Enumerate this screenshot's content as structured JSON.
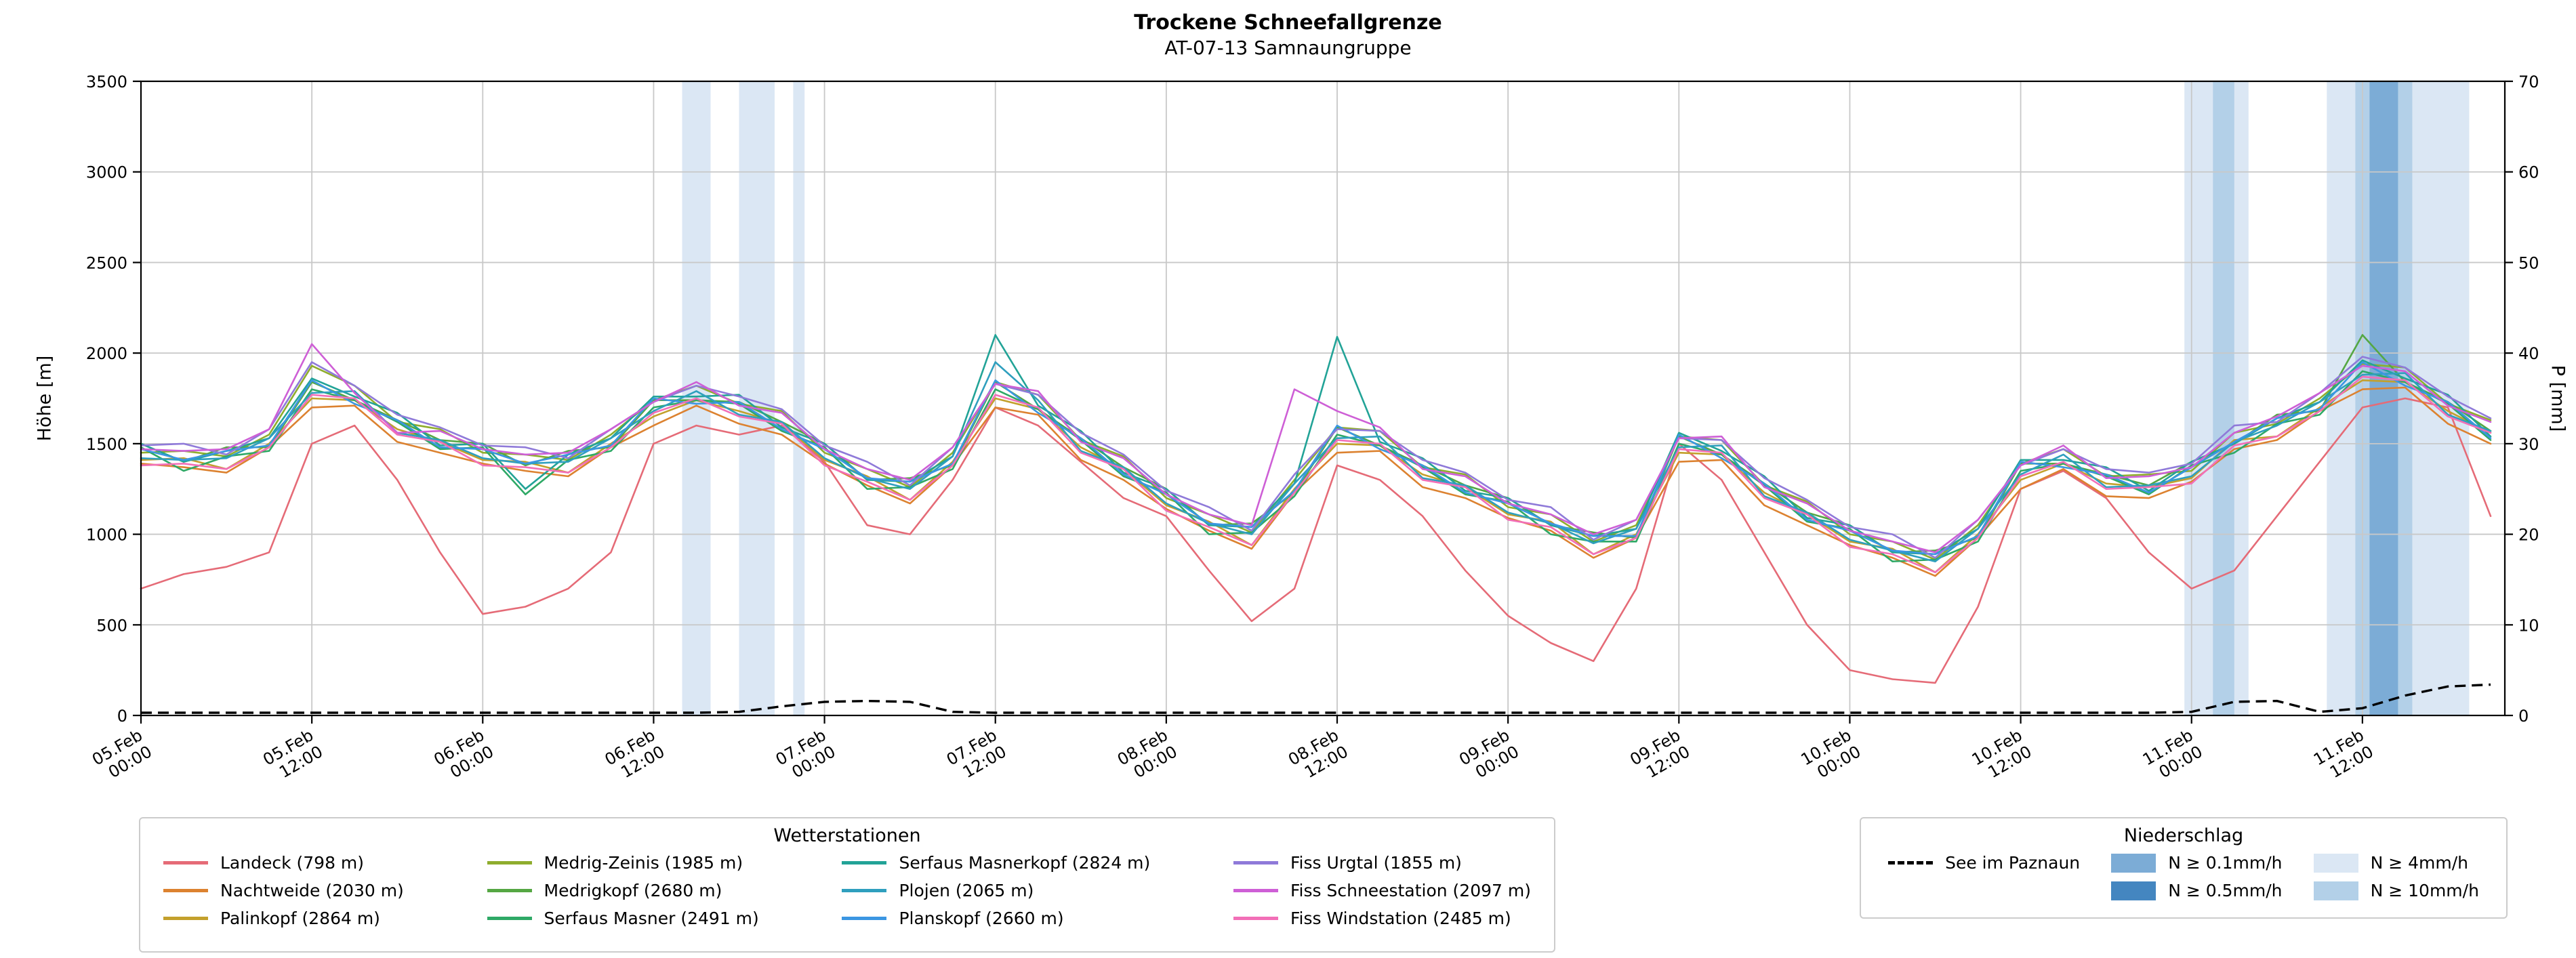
{
  "title": "Trockene Schneefallgrenze",
  "subtitle": "AT-07-13 Samnaungruppe",
  "legend_stations_title": "Wetterstationen",
  "legend_precip_title": "Niederschlag",
  "lake_label": "See im Paznaun",
  "chart_data": {
    "type": "line",
    "title": "Trockene Schneefallgrenze",
    "subtitle": "AT-07-13 Samnaungruppe",
    "x_unit_hours_since": "05.Feb 00:00",
    "x_range_hours": [
      0,
      166
    ],
    "sample_step_hours": 3,
    "grid": true,
    "y_left": {
      "label": "Höhe [m]",
      "min": 0,
      "max": 3500,
      "tick_step": 500
    },
    "y_right": {
      "label": "P [mm]",
      "min": 0,
      "max": 70,
      "tick_step": 10
    },
    "x_ticks": [
      {
        "h": 0,
        "date": "05.Feb",
        "time": "00:00"
      },
      {
        "h": 12,
        "date": "05.Feb",
        "time": "12:00"
      },
      {
        "h": 24,
        "date": "06.Feb",
        "time": "00:00"
      },
      {
        "h": 36,
        "date": "06.Feb",
        "time": "12:00"
      },
      {
        "h": 48,
        "date": "07.Feb",
        "time": "00:00"
      },
      {
        "h": 60,
        "date": "07.Feb",
        "time": "12:00"
      },
      {
        "h": 72,
        "date": "08.Feb",
        "time": "00:00"
      },
      {
        "h": 84,
        "date": "08.Feb",
        "time": "12:00"
      },
      {
        "h": 96,
        "date": "09.Feb",
        "time": "00:00"
      },
      {
        "h": 108,
        "date": "09.Feb",
        "time": "12:00"
      },
      {
        "h": 120,
        "date": "10.Feb",
        "time": "00:00"
      },
      {
        "h": 132,
        "date": "10.Feb",
        "time": "12:00"
      },
      {
        "h": 144,
        "date": "11.Feb",
        "time": "00:00"
      },
      {
        "h": 156,
        "date": "11.Feb",
        "time": "12:00"
      }
    ],
    "precip_levels": {
      "0.1": "#dbe7f4",
      "0.5": "#b3d0e8",
      "4": "#7cacd6",
      "10": "#4486c0"
    },
    "precip_level_labels": [
      "N ≥ 0.1mm/h",
      "N ≥ 0.5mm/h",
      "N ≥ 4mm/h",
      "N ≥ 10mm/h"
    ],
    "precip_bands": [
      {
        "start_h": 38.0,
        "end_h": 40.0,
        "level": "0.1"
      },
      {
        "start_h": 42.0,
        "end_h": 44.5,
        "level": "0.1"
      },
      {
        "start_h": 45.8,
        "end_h": 46.6,
        "level": "0.1"
      },
      {
        "start_h": 143.5,
        "end_h": 148.0,
        "level": "0.1"
      },
      {
        "start_h": 145.5,
        "end_h": 147.0,
        "level": "0.5"
      },
      {
        "start_h": 153.5,
        "end_h": 163.5,
        "level": "0.1"
      },
      {
        "start_h": 155.5,
        "end_h": 159.5,
        "level": "0.5"
      },
      {
        "start_h": 156.5,
        "end_h": 158.5,
        "level": "4"
      }
    ],
    "lake_series": {
      "name": "See im Paznaun",
      "axis": "right",
      "style": "dashed",
      "color": "#000000",
      "values": [
        0.3,
        0.3,
        0.3,
        0.3,
        0.3,
        0.3,
        0.3,
        0.3,
        0.3,
        0.3,
        0.3,
        0.3,
        0.3,
        0.3,
        0.4,
        1.0,
        1.5,
        1.6,
        1.5,
        0.4,
        0.3,
        0.3,
        0.3,
        0.3,
        0.3,
        0.3,
        0.3,
        0.3,
        0.3,
        0.3,
        0.3,
        0.3,
        0.3,
        0.3,
        0.3,
        0.3,
        0.3,
        0.3,
        0.3,
        0.3,
        0.3,
        0.3,
        0.3,
        0.3,
        0.3,
        0.3,
        0.3,
        0.3,
        0.4,
        1.5,
        1.6,
        0.4,
        0.8,
        2.2,
        3.2,
        3.4
      ]
    },
    "series": [
      {
        "name": "Landeck (798 m)",
        "color": "#e56b77",
        "values": [
          700,
          780,
          820,
          900,
          1500,
          1600,
          1300,
          900,
          560,
          600,
          700,
          900,
          1500,
          1600,
          1550,
          1600,
          1400,
          1050,
          1000,
          1300,
          1700,
          1600,
          1400,
          1200,
          1100,
          800,
          520,
          700,
          1380,
          1300,
          1100,
          800,
          550,
          400,
          300,
          700,
          1500,
          1300,
          900,
          500,
          250,
          200,
          180,
          600,
          1250,
          1350,
          1200,
          900,
          700,
          800,
          1100,
          1400,
          1700,
          1750,
          1700,
          1100
        ]
      },
      {
        "name": "Nachtweide (2030 m)",
        "color": "#dc8230",
        "values": [
          1390,
          1370,
          1340,
          1480,
          1700,
          1710,
          1510,
          1450,
          1390,
          1350,
          1320,
          1480,
          1600,
          1710,
          1610,
          1550,
          1390,
          1270,
          1170,
          1380,
          1700,
          1660,
          1410,
          1300,
          1140,
          1020,
          920,
          1230,
          1450,
          1460,
          1260,
          1200,
          1090,
          1020,
          870,
          980,
          1400,
          1410,
          1160,
          1050,
          940,
          870,
          770,
          980,
          1250,
          1360,
          1210,
          1200,
          1290,
          1470,
          1520,
          1680,
          1800,
          1810,
          1610,
          1500
        ]
      },
      {
        "name": "Palinkopf (2864 m)",
        "color": "#c3a02c",
        "values": [
          1410,
          1420,
          1360,
          1500,
          1750,
          1740,
          1580,
          1510,
          1410,
          1400,
          1340,
          1500,
          1650,
          1740,
          1680,
          1610,
          1410,
          1320,
          1190,
          1400,
          1750,
          1690,
          1480,
          1360,
          1160,
          1070,
          940,
          1250,
          1500,
          1490,
          1330,
          1260,
          1110,
          1070,
          890,
          1000,
          1450,
          1440,
          1230,
          1110,
          960,
          920,
          790,
          1000,
          1300,
          1390,
          1280,
          1260,
          1310,
          1520,
          1540,
          1700,
          1850,
          1840,
          1680,
          1560
        ]
      },
      {
        "name": "Medrig-Zeinis (1985 m)",
        "color": "#8fad2d",
        "values": [
          1450,
          1460,
          1430,
          1550,
          1930,
          1820,
          1620,
          1580,
          1450,
          1440,
          1410,
          1550,
          1740,
          1820,
          1720,
          1680,
          1450,
          1360,
          1260,
          1450,
          1840,
          1770,
          1520,
          1430,
          1200,
          1110,
          1010,
          1300,
          1590,
          1570,
          1370,
          1330,
          1150,
          1110,
          960,
          1050,
          1540,
          1520,
          1270,
          1180,
          1000,
          960,
          860,
          1050,
          1390,
          1470,
          1320,
          1330,
          1350,
          1560,
          1610,
          1750,
          1940,
          1920,
          1720,
          1630
        ]
      },
      {
        "name": "Medrigkopf (2680 m)",
        "color": "#55a743",
        "values": [
          1500,
          1400,
          1480,
          1480,
          1840,
          1740,
          1630,
          1520,
          1500,
          1380,
          1460,
          1480,
          1740,
          1740,
          1730,
          1620,
          1500,
          1300,
          1310,
          1380,
          1840,
          1690,
          1530,
          1370,
          1250,
          1050,
          1060,
          1230,
          1590,
          1490,
          1380,
          1270,
          1200,
          1050,
          1010,
          980,
          1540,
          1440,
          1280,
          1120,
          1050,
          900,
          910,
          980,
          1390,
          1390,
          1330,
          1270,
          1400,
          1500,
          1660,
          1680,
          2100,
          1840,
          1730,
          1570
        ]
      },
      {
        "name": "Serfaus Masner (2491 m)",
        "color": "#2fa966",
        "values": [
          1480,
          1350,
          1430,
          1460,
          1800,
          1740,
          1620,
          1470,
          1480,
          1220,
          1410,
          1460,
          1700,
          1740,
          1720,
          1570,
          1480,
          1250,
          1260,
          1360,
          1800,
          1690,
          1520,
          1320,
          1230,
          1000,
          1010,
          1210,
          1550,
          1490,
          1370,
          1220,
          1180,
          1000,
          960,
          960,
          1500,
          1440,
          1270,
          1070,
          1030,
          850,
          860,
          960,
          1350,
          1390,
          1320,
          1220,
          1380,
          1450,
          1610,
          1660,
          1900,
          1840,
          1720,
          1520
        ]
      },
      {
        "name": "Serfaus Masnerkopf (2824 m)",
        "color": "#22a397",
        "values": [
          1500,
          1400,
          1460,
          1530,
          1860,
          1760,
          1670,
          1490,
          1500,
          1250,
          1440,
          1530,
          1760,
          1760,
          1770,
          1590,
          1500,
          1300,
          1290,
          1430,
          2100,
          1710,
          1570,
          1340,
          1250,
          1050,
          1040,
          1280,
          2090,
          1510,
          1420,
          1240,
          1200,
          1050,
          990,
          1030,
          1560,
          1460,
          1320,
          1090,
          1050,
          900,
          890,
          1030,
          1410,
          1410,
          1370,
          1240,
          1400,
          1500,
          1640,
          1730,
          1960,
          1860,
          1770,
          1540
        ]
      },
      {
        "name": "Plojen (2065 m)",
        "color": "#2f9fbe",
        "values": [
          1420,
          1410,
          1420,
          1530,
          1780,
          1790,
          1560,
          1520,
          1420,
          1390,
          1400,
          1530,
          1680,
          1790,
          1660,
          1620,
          1420,
          1310,
          1250,
          1430,
          1950,
          1740,
          1460,
          1370,
          1170,
          1060,
          1000,
          1280,
          1530,
          1540,
          1310,
          1270,
          1120,
          1060,
          950,
          1030,
          1480,
          1490,
          1210,
          1120,
          970,
          910,
          850,
          1030,
          1330,
          1440,
          1260,
          1270,
          1320,
          1510,
          1600,
          1730,
          1880,
          1890,
          1660,
          1570
        ]
      },
      {
        "name": "Planskopf (2660 m)",
        "color": "#3b96e2",
        "values": [
          1470,
          1410,
          1460,
          1490,
          1850,
          1720,
          1630,
          1480,
          1470,
          1390,
          1440,
          1490,
          1750,
          1720,
          1730,
          1580,
          1470,
          1310,
          1290,
          1390,
          1850,
          1670,
          1530,
          1330,
          1220,
          1060,
          1040,
          1240,
          1600,
          1470,
          1380,
          1230,
          1170,
          1060,
          990,
          990,
          1550,
          1420,
          1280,
          1080,
          1020,
          910,
          890,
          990,
          1400,
          1370,
          1330,
          1230,
          1370,
          1510,
          1640,
          1690,
          1950,
          1820,
          1730,
          1530
        ]
      },
      {
        "name": "Fiss Urgtal  (1855 m)",
        "color": "#8f7ad9",
        "values": [
          1490,
          1500,
          1440,
          1580,
          1950,
          1820,
          1660,
          1590,
          1490,
          1480,
          1420,
          1580,
          1730,
          1820,
          1760,
          1690,
          1490,
          1400,
          1270,
          1480,
          1830,
          1770,
          1560,
          1440,
          1240,
          1150,
          1020,
          1330,
          1580,
          1570,
          1410,
          1340,
          1190,
          1150,
          970,
          1080,
          1530,
          1520,
          1310,
          1190,
          1040,
          1000,
          870,
          1080,
          1380,
          1470,
          1360,
          1340,
          1390,
          1600,
          1620,
          1780,
          1980,
          1920,
          1760,
          1640
        ]
      },
      {
        "name": "Fiss Schneestation (2097 m)",
        "color": "#ce5fd6",
        "values": [
          1470,
          1460,
          1470,
          1580,
          2050,
          1780,
          1560,
          1570,
          1470,
          1440,
          1450,
          1580,
          1730,
          1840,
          1710,
          1670,
          1470,
          1360,
          1300,
          1480,
          1830,
          1790,
          1510,
          1420,
          1220,
          1110,
          1050,
          1800,
          1680,
          1590,
          1360,
          1320,
          1170,
          1110,
          1000,
          1080,
          1530,
          1540,
          1260,
          1170,
          1020,
          960,
          900,
          1080,
          1380,
          1490,
          1310,
          1320,
          1370,
          1560,
          1650,
          1780,
          1930,
          1900,
          1710,
          1620
        ]
      },
      {
        "name": "Fiss Windstation (2485 m)",
        "color": "#f26fb7",
        "values": [
          1380,
          1390,
          1360,
          1480,
          1770,
          1750,
          1550,
          1510,
          1380,
          1370,
          1340,
          1480,
          1670,
          1750,
          1650,
          1610,
          1380,
          1290,
          1190,
          1380,
          1770,
          1700,
          1450,
          1360,
          1130,
          1040,
          940,
          1230,
          1520,
          1500,
          1300,
          1260,
          1080,
          1040,
          890,
          980,
          1470,
          1450,
          1200,
          1110,
          930,
          890,
          790,
          980,
          1320,
          1400,
          1250,
          1260,
          1280,
          1490,
          1540,
          1680,
          1870,
          1850,
          1650,
          1560
        ]
      }
    ]
  }
}
